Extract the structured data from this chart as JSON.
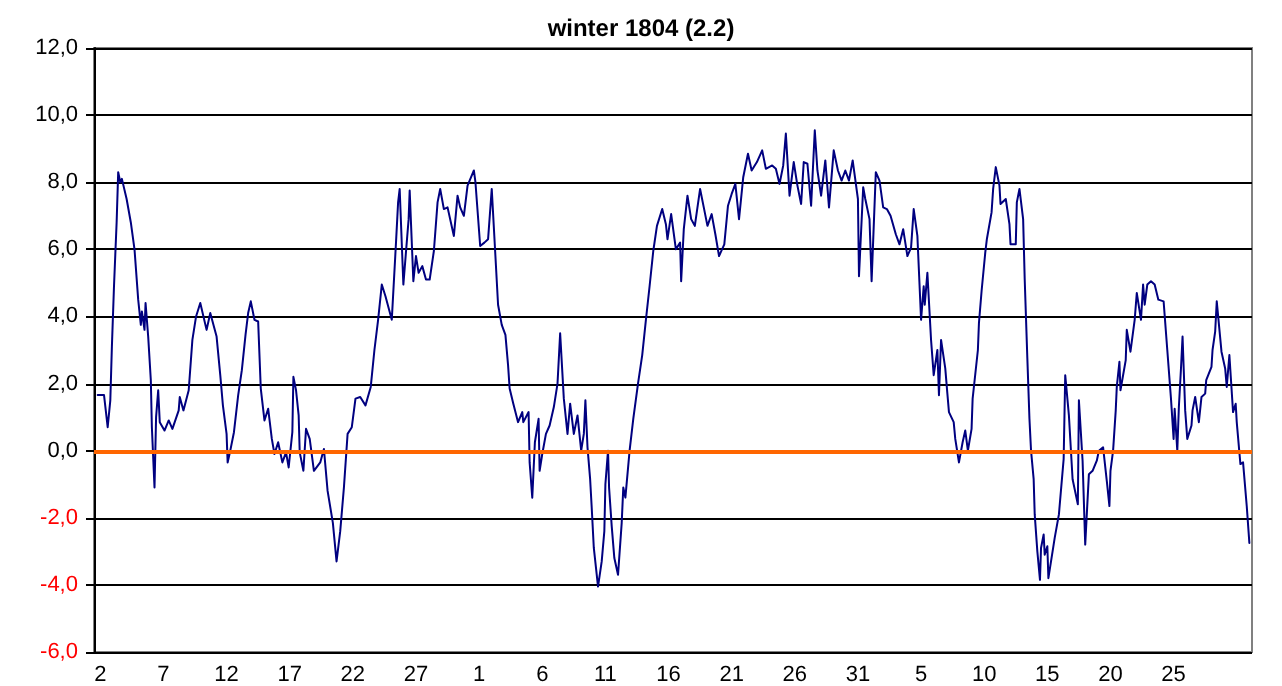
{
  "chart_data": {
    "type": "line",
    "title": "winter 1804 (2.2)",
    "xlim": [
      "1803-12-01T12:00",
      "1804-03-02T05:00"
    ],
    "xticks": [
      {
        "value": "1803-12-02",
        "label": "2"
      },
      {
        "value": "1803-12-07",
        "label": "7"
      },
      {
        "value": "1803-12-12",
        "label": "12"
      },
      {
        "value": "1803-12-17",
        "label": "17"
      },
      {
        "value": "1803-12-22",
        "label": "22"
      },
      {
        "value": "1803-12-27",
        "label": "27"
      },
      {
        "value": "1804-01-01",
        "label": "1"
      },
      {
        "value": "1804-01-06",
        "label": "6"
      },
      {
        "value": "1804-01-11",
        "label": "11"
      },
      {
        "value": "1804-01-16",
        "label": "16"
      },
      {
        "value": "1804-01-21",
        "label": "21"
      },
      {
        "value": "1804-01-26",
        "label": "26"
      },
      {
        "value": "1804-01-31",
        "label": "31"
      },
      {
        "value": "1804-02-05",
        "label": "5"
      },
      {
        "value": "1804-02-10",
        "label": "10"
      },
      {
        "value": "1804-02-15",
        "label": "15"
      },
      {
        "value": "1804-02-20",
        "label": "20"
      },
      {
        "value": "1804-02-25",
        "label": "25"
      }
    ],
    "ylim": [
      -6,
      12
    ],
    "yticks": [
      {
        "value": -6,
        "label": "-6,0"
      },
      {
        "value": -4,
        "label": "-4,0"
      },
      {
        "value": -2,
        "label": "-2,0"
      },
      {
        "value": 0,
        "label": "0,0"
      },
      {
        "value": 2,
        "label": "2,0"
      },
      {
        "value": 4,
        "label": "4,0"
      },
      {
        "value": 6,
        "label": "6,0"
      },
      {
        "value": 8,
        "label": "8,0"
      },
      {
        "value": 10,
        "label": "10,0"
      },
      {
        "value": 12,
        "label": "12,0"
      }
    ],
    "grid": "y",
    "marker": "none",
    "line_style": "solid",
    "ref_lines": [
      {
        "axis": "y",
        "value": 0,
        "color": "#ff6600"
      }
    ],
    "series": [
      {
        "color": "#000080",
        "x": [
          "1803-12-01T19:00",
          "1803-12-02T07:00",
          "1803-12-02T14:00",
          "1803-12-02T19:00",
          "1803-12-02T22:00",
          "1803-12-03T02:00",
          "1803-12-03T07:00",
          "1803-12-03T10:00",
          "1803-12-03T14:00",
          "1803-12-03T17:00",
          "1803-12-04T02:00",
          "1803-12-04T10:00",
          "1803-12-04T17:00",
          "1803-12-05T00:00",
          "1803-12-05T05:00",
          "1803-12-05T07:00",
          "1803-12-05T12:00",
          "1803-12-05T14:00",
          "1803-12-05T19:00",
          "1803-12-06T00:00",
          "1803-12-06T02:00",
          "1803-12-06T07:00",
          "1803-12-06T10:00",
          "1803-12-06T14:00",
          "1803-12-06T17:00",
          "1803-12-07T02:00",
          "1803-12-07T10:00",
          "1803-12-07T17:00",
          "1803-12-08T05:00",
          "1803-12-08T07:00",
          "1803-12-08T14:00",
          "1803-12-09T00:00",
          "1803-12-09T07:00",
          "1803-12-09T14:00",
          "1803-12-09T22:00",
          "1803-12-10T10:00",
          "1803-12-10T17:00",
          "1803-12-11T05:00",
          "1803-12-11T12:00",
          "1803-12-11T17:00",
          "1803-12-12T00:00",
          "1803-12-12T02:00",
          "1803-12-12T07:00",
          "1803-12-12T14:00",
          "1803-12-12T22:00",
          "1803-12-13T05:00",
          "1803-12-13T12:00",
          "1803-12-13T17:00",
          "1803-12-13T22:00",
          "1803-12-14T05:00",
          "1803-12-14T12:00",
          "1803-12-14T17:00",
          "1803-12-15T00:00",
          "1803-12-15T07:00",
          "1803-12-15T14:00",
          "1803-12-15T19:00",
          "1803-12-16T02:00",
          "1803-12-16T10:00",
          "1803-12-16T17:00",
          "1803-12-16T22:00",
          "1803-12-17T05:00",
          "1803-12-17T07:00",
          "1803-12-17T12:00",
          "1803-12-17T17:00",
          "1803-12-17T19:00",
          "1803-12-18T02:00",
          "1803-12-18T07:00",
          "1803-12-18T14:00",
          "1803-12-18T22:00",
          "1803-12-19T10:00",
          "1803-12-19T17:00",
          "1803-12-20T00:00",
          "1803-12-20T10:00",
          "1803-12-20T17:00",
          "1803-12-21T00:00",
          "1803-12-21T07:00",
          "1803-12-21T14:00",
          "1803-12-21T22:00",
          "1803-12-22T05:00",
          "1803-12-22T14:00",
          "1803-12-23T00:00",
          "1803-12-23T10:00",
          "1803-12-23T17:00",
          "1803-12-24T00:00",
          "1803-12-24T07:00",
          "1803-12-24T14:00",
          "1803-12-25T02:00",
          "1803-12-25T10:00",
          "1803-12-25T14:00",
          "1803-12-25T17:00",
          "1803-12-26T00:00",
          "1803-12-26T10:00",
          "1803-12-26T12:00",
          "1803-12-26T19:00",
          "1803-12-27T00:00",
          "1803-12-27T05:00",
          "1803-12-27T12:00",
          "1803-12-27T19:00",
          "1803-12-28T02:00",
          "1803-12-28T10:00",
          "1803-12-28T17:00",
          "1803-12-28T22:00",
          "1803-12-29T05:00",
          "1803-12-29T12:00",
          "1803-12-30T00:00",
          "1803-12-30T07:00",
          "1803-12-30T12:00",
          "1803-12-30T19:00",
          "1803-12-31T02:00",
          "1803-12-31T14:00",
          "1803-12-31T17:00",
          "1804-01-01T02:00",
          "1804-01-01T10:00",
          "1804-01-01T17:00",
          "1804-01-02T00:00",
          "1804-01-02T12:00",
          "1804-01-02T19:00",
          "1804-01-03T02:00",
          "1804-01-03T07:00",
          "1804-01-03T10:00",
          "1804-01-03T17:00",
          "1804-01-04T02:00",
          "1804-01-04T10:00",
          "1804-01-04T12:00",
          "1804-01-04T22:00",
          "1804-01-05T00:00",
          "1804-01-05T05:00",
          "1804-01-05T10:00",
          "1804-01-05T17:00",
          "1804-01-05T19:00",
          "1804-01-06T00:00",
          "1804-01-06T07:00",
          "1804-01-06T14:00",
          "1804-01-06T22:00",
          "1804-01-07T05:00",
          "1804-01-07T10:00",
          "1804-01-07T17:00",
          "1804-01-08T00:00",
          "1804-01-08T05:00",
          "1804-01-08T12:00",
          "1804-01-08T19:00",
          "1804-01-09T02:00",
          "1804-01-09T07:00",
          "1804-01-09T10:00",
          "1804-01-09T14:00",
          "1804-01-09T19:00",
          "1804-01-09T22:00",
          "1804-01-10T02:00",
          "1804-01-10T10:00",
          "1804-01-10T17:00",
          "1804-01-10T22:00",
          "1804-01-11T00:00",
          "1804-01-11T05:00",
          "1804-01-11T07:00",
          "1804-01-11T12:00",
          "1804-01-11T17:00",
          "1804-01-12T00:00",
          "1804-01-12T07:00",
          "1804-01-12T10:00",
          "1804-01-12T14:00",
          "1804-01-12T22:00",
          "1804-01-13T05:00",
          "1804-01-13T14:00",
          "1804-01-13T22:00",
          "1804-01-14T05:00",
          "1804-01-14T12:00",
          "1804-01-14T19:00",
          "1804-01-15T02:00",
          "1804-01-15T12:00",
          "1804-01-15T19:00",
          "1804-01-15T22:00",
          "1804-01-16T05:00",
          "1804-01-16T14:00",
          "1804-01-16T22:00",
          "1804-01-17T00:00",
          "1804-01-17T05:00",
          "1804-01-17T12:00",
          "1804-01-17T19:00",
          "1804-01-18T02:00",
          "1804-01-18T12:00",
          "1804-01-18T19:00",
          "1804-01-19T02:00",
          "1804-01-19T10:00",
          "1804-01-19T17:00",
          "1804-01-20T00:00",
          "1804-01-20T10:00",
          "1804-01-20T17:00",
          "1804-01-21T00:00",
          "1804-01-21T07:00",
          "1804-01-21T14:00",
          "1804-01-21T22:00",
          "1804-01-22T07:00",
          "1804-01-22T14:00",
          "1804-01-23T00:00",
          "1804-01-23T10:00",
          "1804-01-23T17:00",
          "1804-01-24T05:00",
          "1804-01-24T12:00",
          "1804-01-24T19:00",
          "1804-01-25T02:00",
          "1804-01-25T07:00",
          "1804-01-25T14:00",
          "1804-01-25T22:00",
          "1804-01-26T05:00",
          "1804-01-26T12:00",
          "1804-01-26T17:00",
          "1804-01-27T00:00",
          "1804-01-27T07:00",
          "1804-01-27T14:00",
          "1804-01-27T19:00",
          "1804-01-28T02:00",
          "1804-01-28T10:00",
          "1804-01-28T17:00",
          "1804-01-29T02:00",
          "1804-01-29T10:00",
          "1804-01-29T17:00",
          "1804-01-30T00:00",
          "1804-01-30T07:00",
          "1804-01-30T14:00",
          "1804-01-31T00:00",
          "1804-01-31T02:00",
          "1804-01-31T10:00",
          "1804-01-31T14:00",
          "1804-01-31T22:00",
          "1804-02-01T02:00",
          "1804-02-01T10:00",
          "1804-02-01T17:00",
          "1804-02-02T00:00",
          "1804-02-02T07:00",
          "1804-02-02T14:00",
          "1804-02-03T00:00",
          "1804-02-03T07:00",
          "1804-02-03T14:00",
          "1804-02-03T22:00",
          "1804-02-04T05:00",
          "1804-02-04T10:00",
          "1804-02-04T17:00",
          "1804-02-05T00:00",
          "1804-02-05T05:00",
          "1804-02-05T07:00",
          "1804-02-05T12:00",
          "1804-02-05T19:00",
          "1804-02-06T00:00",
          "1804-02-06T07:00",
          "1804-02-06T10:00",
          "1804-02-06T14:00",
          "1804-02-06T22:00",
          "1804-02-07T02:00",
          "1804-02-07T05:00",
          "1804-02-07T14:00",
          "1804-02-07T17:00",
          "1804-02-08T00:00",
          "1804-02-08T07:00",
          "1804-02-08T12:00",
          "1804-02-08T17:00",
          "1804-02-09T00:00",
          "1804-02-09T02:00",
          "1804-02-09T12:00",
          "1804-02-09T14:00",
          "1804-02-09T19:00",
          "1804-02-10T02:00",
          "1804-02-10T05:00",
          "1804-02-10T14:00",
          "1804-02-10T17:00",
          "1804-02-10T22:00",
          "1804-02-11T05:00",
          "1804-02-11T07:00",
          "1804-02-11T17:00",
          "1804-02-12T00:00",
          "1804-02-12T02:00",
          "1804-02-12T12:00",
          "1804-02-12T14:00",
          "1804-02-12T19:00",
          "1804-02-13T02:00",
          "1804-02-13T05:00",
          "1804-02-13T10:00",
          "1804-02-13T14:00",
          "1804-02-13T17:00",
          "1804-02-13T22:00",
          "1804-02-14T00:00",
          "1804-02-14T05:00",
          "1804-02-14T10:00",
          "1804-02-14T12:00",
          "1804-02-14T17:00",
          "1804-02-14T19:00",
          "1804-02-15T00:00",
          "1804-02-15T02:00",
          "1804-02-15T12:00",
          "1804-02-15T14:00",
          "1804-02-15T22:00",
          "1804-02-16T07:00",
          "1804-02-16T10:00",
          "1804-02-16T17:00",
          "1804-02-17T00:00",
          "1804-02-17T10:00",
          "1804-02-17T12:00",
          "1804-02-17T19:00",
          "1804-02-18T00:00",
          "1804-02-18T07:00",
          "1804-02-18T14:00",
          "1804-02-18T22:00",
          "1804-02-19T02:00",
          "1804-02-19T10:00",
          "1804-02-19T17:00",
          "1804-02-19T22:00",
          "1804-02-20T00:00",
          "1804-02-20T05:00",
          "1804-02-20T10:00",
          "1804-02-20T12:00",
          "1804-02-20T17:00",
          "1804-02-20T19:00",
          "1804-02-21T05:00",
          "1804-02-21T07:00",
          "1804-02-21T14:00",
          "1804-02-21T22:00",
          "1804-02-22T02:00",
          "1804-02-22T10:00",
          "1804-02-22T14:00",
          "1804-02-22T17:00",
          "1804-02-22T22:00",
          "1804-02-23T05:00",
          "1804-02-23T12:00",
          "1804-02-23T19:00",
          "1804-02-24T05:00",
          "1804-02-24T12:00",
          "1804-02-24T19:00",
          "1804-02-25T00:00",
          "1804-02-25T02:00",
          "1804-02-25T07:00",
          "1804-02-25T10:00",
          "1804-02-25T14:00",
          "1804-02-25T17:00",
          "1804-02-25T22:00",
          "1804-02-26T02:00",
          "1804-02-26T10:00",
          "1804-02-26T12:00",
          "1804-02-26T17:00",
          "1804-02-27T00:00",
          "1804-02-27T05:00",
          "1804-02-27T12:00",
          "1804-02-27T14:00",
          "1804-02-28T00:00",
          "1804-02-28T02:00",
          "1804-02-28T07:00",
          "1804-02-28T10:00",
          "1804-02-28T19:00",
          "1804-02-29T02:00",
          "1804-02-29T05:00",
          "1804-02-29T10:00",
          "1804-02-29T17:00",
          "1804-02-29T22:00",
          "1804-03-01T00:00",
          "1804-03-01T05:00",
          "1804-03-01T07:00",
          "1804-03-01T12:00",
          "1804-03-01T19:00",
          "1804-03-02T00:00"
        ],
        "values": [
          1.66,
          1.66,
          0.7,
          1.5,
          3.1,
          4.9,
          6.8,
          8.3,
          8.0,
          8.1,
          7.5,
          6.8,
          6.0,
          4.5,
          3.75,
          4.15,
          3.6,
          4.4,
          3.4,
          2.1,
          0.7,
          -1.1,
          1.0,
          1.8,
          0.85,
          0.6,
          0.9,
          0.65,
          1.2,
          1.6,
          1.2,
          1.8,
          3.3,
          4.0,
          4.4,
          3.6,
          4.1,
          3.4,
          2.25,
          1.35,
          0.5,
          -0.35,
          0,
          0.55,
          1.65,
          2.4,
          3.45,
          4.1,
          4.45,
          3.9,
          3.85,
          1.85,
          0.9,
          1.25,
          0.35,
          -0.1,
          0.25,
          -0.35,
          -0.05,
          -0.5,
          0.55,
          2.2,
          1.8,
          1.05,
          -0.05,
          -0.6,
          0.65,
          0.35,
          -0.6,
          -0.35,
          0.05,
          -1.2,
          -2.15,
          -3.3,
          -2.4,
          -1.1,
          0.5,
          0.7,
          1.55,
          1.6,
          1.35,
          1.9,
          3.0,
          3.9,
          4.95,
          4.6,
          3.9,
          6.2,
          7.4,
          7.8,
          4.95,
          6.9,
          7.75,
          5.05,
          5.8,
          5.3,
          5.5,
          5.1,
          5.1,
          5.95,
          7.4,
          7.8,
          7.2,
          7.25,
          6.4,
          7.6,
          7.25,
          7.0,
          7.9,
          8.35,
          8.0,
          6.1,
          6.2,
          6.3,
          7.8,
          4.35,
          3.75,
          3.45,
          2.55,
          1.85,
          1.4,
          0.85,
          1.15,
          0.85,
          1.15,
          -0.35,
          -1.4,
          0.25,
          0.95,
          -0.6,
          -0.1,
          0.5,
          0.75,
          1.3,
          2.0,
          3.5,
          1.55,
          0.5,
          1.4,
          0.5,
          1.05,
          0,
          0.5,
          1.5,
          0.1,
          -0.85,
          -1.7,
          -2.9,
          -4.05,
          -3.3,
          -2.4,
          -1.0,
          0,
          -1.1,
          -2.25,
          -3.2,
          -3.7,
          -2.15,
          -1.1,
          -1.4,
          0,
          0.95,
          2.0,
          2.85,
          3.9,
          4.9,
          5.95,
          6.7,
          7.2,
          6.75,
          6.3,
          7.05,
          6.0,
          6.2,
          5.05,
          6.6,
          7.6,
          6.9,
          6.7,
          7.8,
          7.25,
          6.7,
          7.05,
          6.45,
          5.8,
          6.15,
          7.3,
          7.65,
          7.95,
          6.9,
          8.15,
          8.85,
          8.35,
          8.6,
          8.95,
          8.4,
          8.5,
          8.4,
          7.95,
          8.5,
          9.45,
          7.6,
          8.6,
          7.9,
          7.35,
          8.6,
          8.55,
          7.3,
          9.55,
          8.35,
          7.6,
          8.65,
          7.25,
          8.95,
          8.35,
          8.05,
          8.35,
          8.05,
          8.65,
          7.5,
          5.2,
          7.85,
          7.5,
          6.9,
          5.05,
          8.3,
          8.05,
          7.25,
          7.2,
          7.0,
          6.45,
          6.15,
          6.6,
          5.8,
          6.05,
          7.2,
          6.4,
          3.9,
          4.9,
          4.35,
          5.3,
          3.3,
          2.25,
          3.0,
          1.65,
          3.3,
          2.45,
          1.7,
          1.15,
          0.85,
          0.35,
          -0.35,
          0.25,
          0.6,
          0,
          0.65,
          1.55,
          3.0,
          3.8,
          4.75,
          5.9,
          6.3,
          7.1,
          7.8,
          8.45,
          7.9,
          7.35,
          7.5,
          6.75,
          6.15,
          6.15,
          7.4,
          7.8,
          6.9,
          5.1,
          2.75,
          0.95,
          0,
          -0.85,
          -1.9,
          -3.0,
          -3.85,
          -2.9,
          -2.5,
          -3.1,
          -2.85,
          -3.8,
          -2.8,
          -2.6,
          -1.9,
          -0.25,
          2.25,
          1.05,
          -0.85,
          -1.6,
          1.5,
          -0.3,
          -2.8,
          -0.7,
          -0.6,
          -0.3,
          0,
          0.1,
          -0.9,
          -1.65,
          -0.6,
          0,
          1.2,
          1.9,
          2.65,
          1.8,
          2.7,
          3.6,
          2.95,
          3.9,
          4.7,
          3.9,
          4.95,
          4.35,
          4.95,
          5.05,
          4.95,
          4.5,
          4.45,
          3.0,
          1.55,
          0.35,
          1.25,
          0,
          1.3,
          2.45,
          3.4,
          1.2,
          0.35,
          0.75,
          1.2,
          1.6,
          0.85,
          1.6,
          1.7,
          2.1,
          2.5,
          3.0,
          3.55,
          4.45,
          2.95,
          2.45,
          1.9,
          2.85,
          1.15,
          1.4,
          0.85,
          -0.05,
          -0.4,
          -0.35,
          -1.65,
          -2.75
        ]
      }
    ]
  }
}
